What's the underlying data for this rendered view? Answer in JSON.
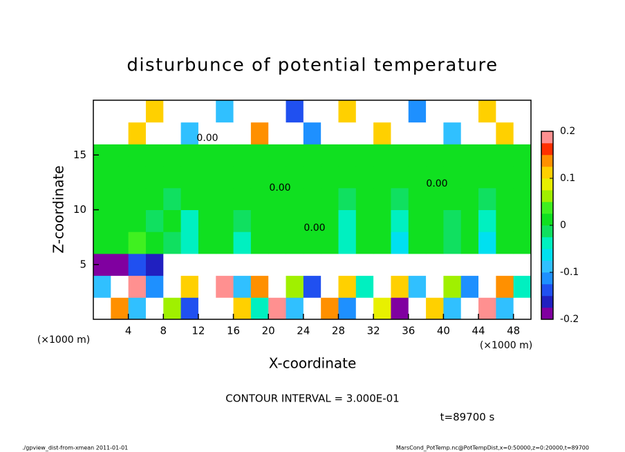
{
  "chart_data": {
    "type": "contour",
    "title": "disturbunce of potential temperature",
    "xlabel": "X-coordinate",
    "ylabel": "Z-coordinate",
    "xunit": "(×1000 m)",
    "yunit": "(×1000 m)",
    "xlim": [
      0,
      50
    ],
    "ylim": [
      0,
      20
    ],
    "xticks": [
      4,
      8,
      12,
      16,
      20,
      24,
      28,
      32,
      36,
      40,
      44,
      48
    ],
    "yticks": [
      5,
      10,
      15
    ],
    "contour_interval": "CONTOUR INTERVAL = 3.000E-01",
    "time": "t=89700 s",
    "contour_labels": [
      "0.00",
      "0.00",
      "0.00",
      "0.00"
    ],
    "footer_left": "./gpview_dist-from-xmean  2011-01-01",
    "footer_right": "MarsCond_PotTemp.nc@PotTempDist,x=0:50000,z=0:20000,t=89700",
    "colorbar": {
      "clim": [
        -0.2,
        0.2
      ],
      "ticks": [
        -0.2,
        -0.1,
        0,
        0.1,
        0.2
      ],
      "colors": [
        "#8000a0",
        "#2020c0",
        "#2050f0",
        "#1e90ff",
        "#30c0ff",
        "#00e0f0",
        "#00f0c0",
        "#10e060",
        "#10e020",
        "#40f020",
        "#a0f000",
        "#e8f000",
        "#ffd000",
        "#ff9000",
        "#ff3000",
        "#ff9090"
      ]
    },
    "z": [
      [
        0.3,
        0.15,
        -0.1,
        0.25,
        0.05,
        -0.15,
        0.3,
        -0.25,
        0.1,
        -0.05,
        0.2,
        -0.1,
        0.3,
        0.15,
        -0.12,
        0.25,
        0.08,
        -0.2,
        0.3,
        0.12,
        -0.08,
        0.25,
        0.18,
        -0.1,
        0.3
      ],
      [
        -0.1,
        0.3,
        0.18,
        -0.12,
        0.25,
        0.1,
        -0.3,
        0.2,
        -0.08,
        0.15,
        0.3,
        0.05,
        -0.15,
        0.3,
        0.1,
        -0.05,
        0.28,
        0.12,
        -0.1,
        0.3,
        0.06,
        -0.12,
        0.3,
        0.15,
        -0.05
      ],
      [
        -0.18,
        -0.2,
        -0.15,
        -0.17,
        -0.3,
        -0.4,
        -0.35,
        -0.4,
        -0.3,
        -0.35,
        -0.4,
        -0.3,
        -0.35,
        -0.4,
        -0.3,
        -0.35,
        -0.4,
        -0.3,
        -0.35,
        -0.3,
        -0.4,
        -0.3,
        -0.35,
        -0.4,
        -0.3
      ],
      [
        0.02,
        0.01,
        0.03,
        0.0,
        -0.02,
        -0.05,
        0.01,
        0.02,
        -0.03,
        0.0,
        0.01,
        0.02,
        0.0,
        0.01,
        -0.04,
        0.0,
        0.02,
        -0.06,
        0.0,
        0.01,
        -0.02,
        0.0,
        -0.07,
        0.01,
        0.02
      ],
      [
        0.0,
        0.01,
        0.0,
        -0.01,
        0.0,
        -0.03,
        0.0,
        0.01,
        -0.02,
        0.0,
        0.0,
        0.01,
        0.0,
        0.0,
        -0.03,
        0.0,
        0.0,
        -0.04,
        0.0,
        0.0,
        -0.02,
        0.0,
        -0.04,
        0.0,
        0.0
      ],
      [
        0.01,
        0.0,
        0.0,
        0.0,
        -0.01,
        0.0,
        0.0,
        0.0,
        0.0,
        0.0,
        0.0,
        0.0,
        0.0,
        0.0,
        -0.01,
        0.0,
        0.0,
        -0.01,
        0.0,
        0.0,
        0.0,
        0.0,
        -0.01,
        0.0,
        0.0
      ],
      [
        0.02,
        0.0,
        0.0,
        0.0,
        0.0,
        0.0,
        0.0,
        0.0,
        0.0,
        0.0,
        0.0,
        0.0,
        0.0,
        0.0,
        0.0,
        0.0,
        0.0,
        0.0,
        0.0,
        0.0,
        0.0,
        0.0,
        0.0,
        0.0,
        0.0
      ],
      [
        0.0,
        0.0,
        0.0,
        0.0,
        0.0,
        0.0,
        0.0,
        0.0,
        0.0,
        0.0,
        0.0,
        0.0,
        0.0,
        0.0,
        0.0,
        0.0,
        0.0,
        0.0,
        0.0,
        0.0,
        0.0,
        0.0,
        0.0,
        0.0,
        0.0
      ],
      [
        0.3,
        -0.3,
        0.1,
        -0.3,
        0.3,
        -0.1,
        -0.3,
        0.3,
        -0.3,
        0.15,
        -0.3,
        0.3,
        -0.12,
        -0.3,
        0.3,
        -0.3,
        0.1,
        -0.3,
        0.3,
        -0.3,
        -0.1,
        0.3,
        -0.3,
        0.12,
        -0.3
      ],
      [
        -0.3,
        0.3,
        -0.3,
        0.12,
        -0.3,
        0.3,
        -0.3,
        -0.1,
        0.3,
        -0.3,
        0.3,
        -0.15,
        0.3,
        -0.3,
        0.1,
        0.3,
        -0.3,
        0.3,
        -0.12,
        0.3,
        -0.3,
        0.3,
        0.1,
        -0.3,
        0.3
      ]
    ]
  }
}
